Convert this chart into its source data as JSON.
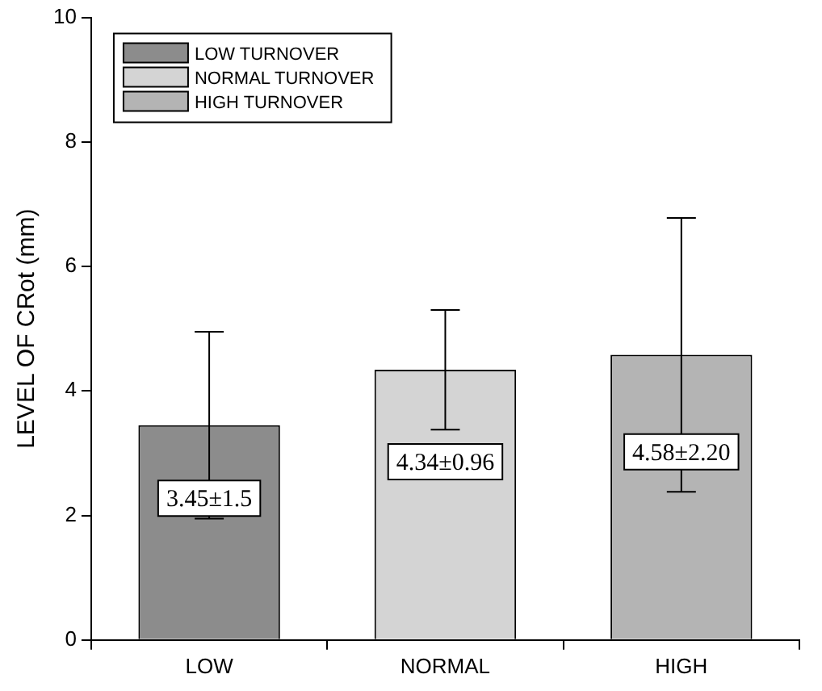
{
  "chart_data": {
    "type": "bar",
    "ylabel": "LEVEL OF CRot (mm)",
    "categories": [
      "LOW",
      "NORMAL",
      "HIGH"
    ],
    "series": [
      {
        "name": "LOW TURNOVER",
        "color": "#8c8c8c",
        "values": [
          3.45,
          null,
          null
        ],
        "errors": [
          1.5,
          null,
          null
        ],
        "value_labels": [
          "3.45±1.5",
          null,
          null
        ]
      },
      {
        "name": "NORMAL TURNOVER",
        "color": "#d4d4d4",
        "values": [
          null,
          4.34,
          null
        ],
        "errors": [
          null,
          0.96,
          null
        ],
        "value_labels": [
          null,
          "4.34±0.96",
          null
        ]
      },
      {
        "name": "HIGH TURNOVER",
        "color": "#b4b4b4",
        "values": [
          null,
          null,
          4.58
        ],
        "errors": [
          null,
          null,
          2.2
        ],
        "value_labels": [
          null,
          null,
          "4.58±2.20"
        ]
      }
    ],
    "ylim": [
      0,
      10
    ],
    "yticks": [
      0,
      2,
      4,
      6,
      8,
      10
    ],
    "grid": false,
    "legend": "top left"
  }
}
